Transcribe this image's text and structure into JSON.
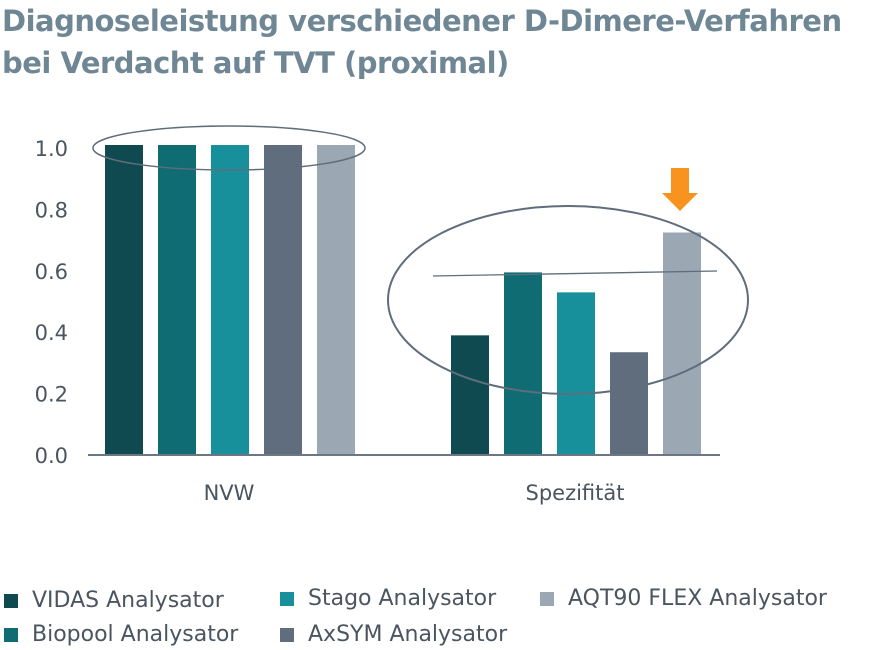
{
  "chart_data": {
    "type": "bar",
    "title": [
      "Diagnoseleistung verschiedener D-Dimere-Verfahren",
      "bei Verdacht auf TVT (proximal)"
    ],
    "categories": [
      "NVW",
      "Spezifität"
    ],
    "ylim": [
      0,
      1.0
    ],
    "yticks": [
      "0.0",
      "0.2",
      "0.4",
      "0.6",
      "0.8",
      "1.0"
    ],
    "series": [
      {
        "name": "VIDAS Analysator",
        "color": "#0e4a50",
        "values": [
          1.0,
          0.38
        ]
      },
      {
        "name": "Biopool Analysator",
        "color": "#0e6c72",
        "values": [
          1.0,
          0.585
        ]
      },
      {
        "name": "Stago Analysator",
        "color": "#17909b",
        "values": [
          1.0,
          0.52
        ]
      },
      {
        "name": "AxSYM Analysator",
        "color": "#5f6d7c",
        "values": [
          1.0,
          0.325
        ]
      },
      {
        "name": "AQT90 FLEX Analysator",
        "color": "#9ba8b3",
        "values": [
          1.0,
          0.715
        ]
      }
    ],
    "legend": "bottom",
    "annotation_color": "#f7931e"
  }
}
